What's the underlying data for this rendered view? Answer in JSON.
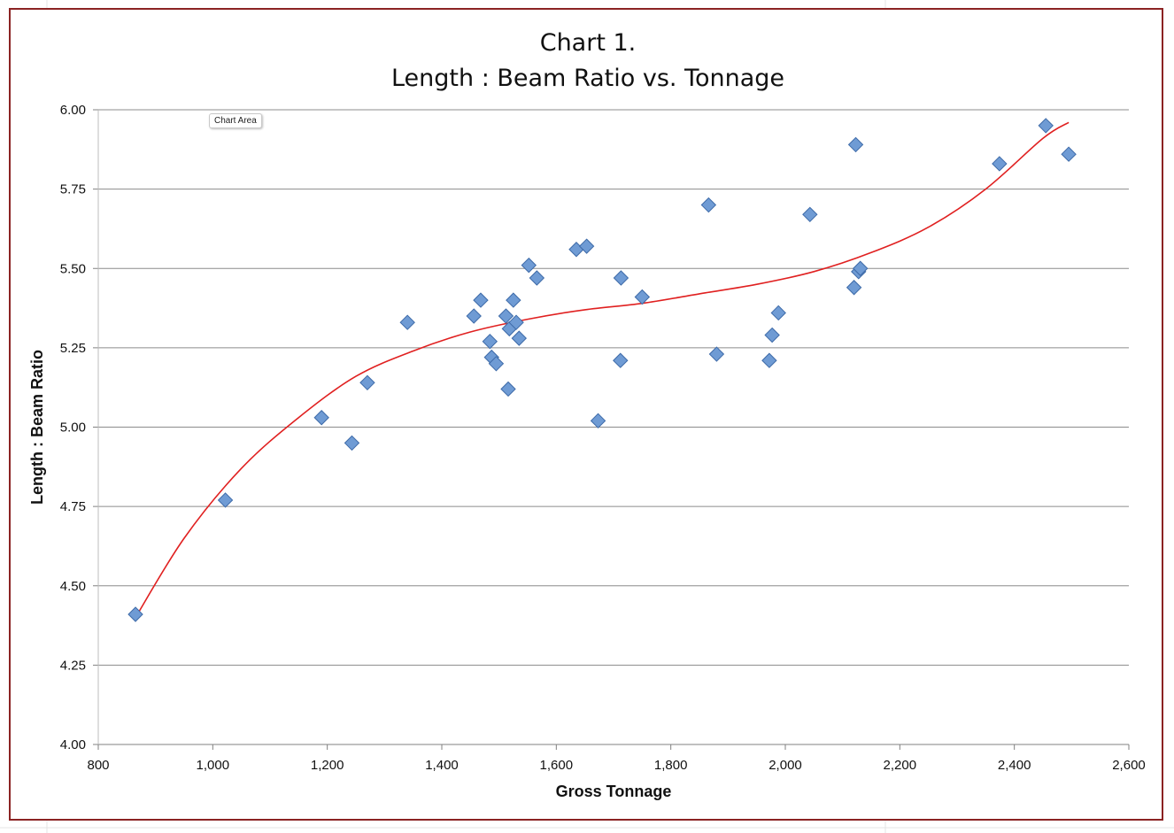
{
  "chart_data": {
    "type": "scatter",
    "title_lines": [
      "Chart 1.",
      "Length : Beam Ratio vs. Tonnage"
    ],
    "xlabel": "Gross Tonnage",
    "ylabel": "Length : Beam Ratio",
    "xlim": [
      800,
      2600
    ],
    "ylim": [
      4.0,
      6.0
    ],
    "x_ticks": [
      800,
      1000,
      1200,
      1400,
      1600,
      1800,
      2000,
      2200,
      2400,
      2600
    ],
    "x_tick_labels": [
      "800",
      "1,000",
      "1,200",
      "1,400",
      "1,600",
      "1,800",
      "2,000",
      "2,200",
      "2,400",
      "2,600"
    ],
    "y_ticks": [
      4.0,
      4.25,
      4.5,
      4.75,
      5.0,
      5.25,
      5.5,
      5.75,
      6.0
    ],
    "y_tick_labels": [
      "4.00",
      "4.25",
      "4.50",
      "4.75",
      "5.00",
      "5.25",
      "5.50",
      "5.75",
      "6.00"
    ],
    "grid": "horizontal",
    "marker_color": "#6f9bd4",
    "marker_edge_color": "#3d6aa8",
    "trendline_color": "#e02020",
    "points": [
      {
        "x": 865,
        "y": 4.41
      },
      {
        "x": 1022,
        "y": 4.77
      },
      {
        "x": 1190,
        "y": 5.03
      },
      {
        "x": 1243,
        "y": 4.95
      },
      {
        "x": 1270,
        "y": 5.14
      },
      {
        "x": 1340,
        "y": 5.33
      },
      {
        "x": 1456,
        "y": 5.35
      },
      {
        "x": 1468,
        "y": 5.4
      },
      {
        "x": 1484,
        "y": 5.27
      },
      {
        "x": 1487,
        "y": 5.22
      },
      {
        "x": 1495,
        "y": 5.2
      },
      {
        "x": 1512,
        "y": 5.35
      },
      {
        "x": 1516,
        "y": 5.12
      },
      {
        "x": 1518,
        "y": 5.31
      },
      {
        "x": 1525,
        "y": 5.4
      },
      {
        "x": 1530,
        "y": 5.33
      },
      {
        "x": 1535,
        "y": 5.28
      },
      {
        "x": 1552,
        "y": 5.51
      },
      {
        "x": 1566,
        "y": 5.47
      },
      {
        "x": 1635,
        "y": 5.56
      },
      {
        "x": 1653,
        "y": 5.57
      },
      {
        "x": 1673,
        "y": 5.02
      },
      {
        "x": 1712,
        "y": 5.21
      },
      {
        "x": 1713,
        "y": 5.47
      },
      {
        "x": 1750,
        "y": 5.41
      },
      {
        "x": 1866,
        "y": 5.7
      },
      {
        "x": 1880,
        "y": 5.23
      },
      {
        "x": 1972,
        "y": 5.21
      },
      {
        "x": 1977,
        "y": 5.29
      },
      {
        "x": 1988,
        "y": 5.36
      },
      {
        "x": 2043,
        "y": 5.67
      },
      {
        "x": 2120,
        "y": 5.44
      },
      {
        "x": 2123,
        "y": 5.89
      },
      {
        "x": 2128,
        "y": 5.49
      },
      {
        "x": 2131,
        "y": 5.5
      },
      {
        "x": 2374,
        "y": 5.83
      },
      {
        "x": 2455,
        "y": 5.95
      },
      {
        "x": 2495,
        "y": 5.86
      }
    ],
    "trendline": {
      "type": "polynomial",
      "x": [
        865,
        950,
        1050,
        1150,
        1250,
        1350,
        1450,
        1550,
        1650,
        1750,
        1850,
        1950,
        2050,
        2150,
        2250,
        2350,
        2450,
        2495
      ],
      "y": [
        4.4,
        4.65,
        4.87,
        5.03,
        5.16,
        5.24,
        5.3,
        5.34,
        5.37,
        5.39,
        5.42,
        5.45,
        5.49,
        5.55,
        5.63,
        5.75,
        5.91,
        5.96
      ]
    }
  },
  "overlay": {
    "tooltip_text": "Chart Area"
  }
}
